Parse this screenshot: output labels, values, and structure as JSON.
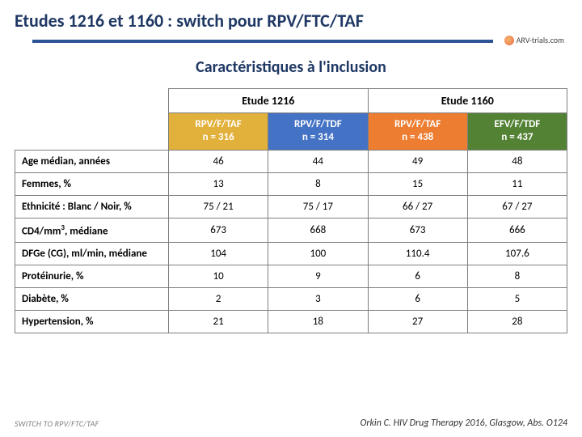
{
  "title": "Etudes 1216 et 1160 : switch pour RPV/FTC/TAF",
  "subtitle": "Caractéristiques à l'inclusion",
  "logo_text": "ARV-trials.com",
  "studies": [
    {
      "label": "Etude 1216",
      "span": 2
    },
    {
      "label": "Etude 1160",
      "span": 2
    }
  ],
  "arms": [
    {
      "line1": "RPV/F/TAF",
      "line2": "n = 316",
      "class": "arm1"
    },
    {
      "line1": "RPV/F/TDF",
      "line2": "n = 314",
      "class": "arm2"
    },
    {
      "line1": "RPV/F/TAF",
      "line2": "n = 438",
      "class": "arm3"
    },
    {
      "line1": "EFV/F/TDF",
      "line2": "n = 437",
      "class": "arm4"
    }
  ],
  "rows": [
    {
      "label": "Age médian, années",
      "v": [
        "46",
        "44",
        "49",
        "48"
      ]
    },
    {
      "label": "Femmes, %",
      "v": [
        "13",
        "8",
        "15",
        "11"
      ]
    },
    {
      "label": "Ethnicité : Blanc / Noir, %",
      "v": [
        "75 / 21",
        "75 / 17",
        "66 / 27",
        "67 / 27"
      ]
    },
    {
      "label": "CD4/mm³, médiane",
      "label_html": "CD4/mm<sup>3</sup>, médiane",
      "v": [
        "673",
        "668",
        "673",
        "666"
      ]
    },
    {
      "label": "DFGe (CG), ml/min, médiane",
      "v": [
        "104",
        "100",
        "110.4",
        "107.6"
      ]
    },
    {
      "label": "Protéinurie, %",
      "v": [
        "10",
        "9",
        "6",
        "8"
      ]
    },
    {
      "label": "Diabète, %",
      "v": [
        "2",
        "3",
        "6",
        "5"
      ]
    },
    {
      "label": "Hypertension, %",
      "v": [
        "21",
        "18",
        "27",
        "28"
      ]
    }
  ],
  "footer_left": "SWITCH TO RPV/FTC/TAF",
  "footer_right": "Orkin C. HIV Drug Therapy 2016, Glasgow, Abs. O124"
}
